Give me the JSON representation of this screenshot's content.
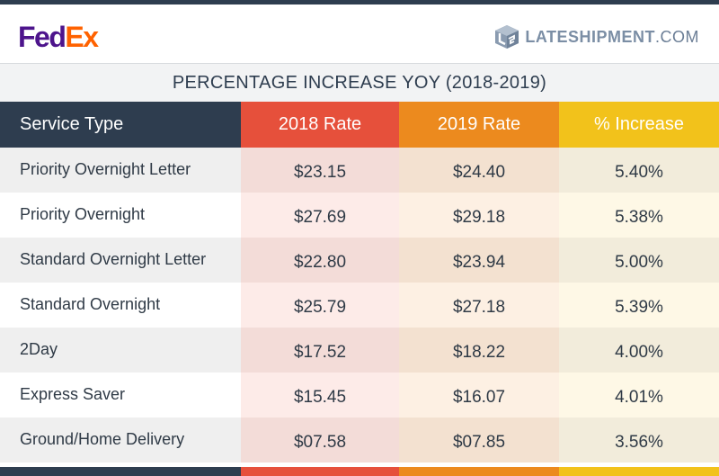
{
  "header": {
    "fedex_logo": {
      "part1": "Fed",
      "part2": "Ex"
    },
    "lateshipment_logo": {
      "part1": "LATESHIPMENT",
      "part2": ".COM",
      "icon": "lateshipment-box-icon"
    }
  },
  "colors": {
    "navy": "#2e3d4f",
    "rate_2018": "#e6503b",
    "rate_2019": "#ec8a1e",
    "increase": "#f2c21b",
    "fedex_purple": "#4d148c",
    "fedex_orange": "#ff6200"
  },
  "chart_data": {
    "type": "table",
    "title": "PERCENTAGE INCREASE YOY (2018-2019)",
    "columns": [
      "Service Type",
      "2018 Rate",
      "2019 Rate",
      "% Increase"
    ],
    "rows": [
      [
        "Priority Overnight Letter",
        "$23.15",
        "$24.40",
        "5.40%"
      ],
      [
        "Priority Overnight",
        "$27.69",
        "$29.18",
        "5.38%"
      ],
      [
        "Standard Overnight Letter",
        "$22.80",
        "$23.94",
        "5.00%"
      ],
      [
        "Standard Overnight",
        "$25.79",
        "$27.18",
        "5.39%"
      ],
      [
        "2Day",
        "$17.52",
        "$18.22",
        "4.00%"
      ],
      [
        "Express Saver",
        "$15.45",
        "$16.07",
        "4.01%"
      ],
      [
        "Ground/Home Delivery",
        "$07.58",
        "$07.85",
        "3.56%"
      ]
    ]
  }
}
